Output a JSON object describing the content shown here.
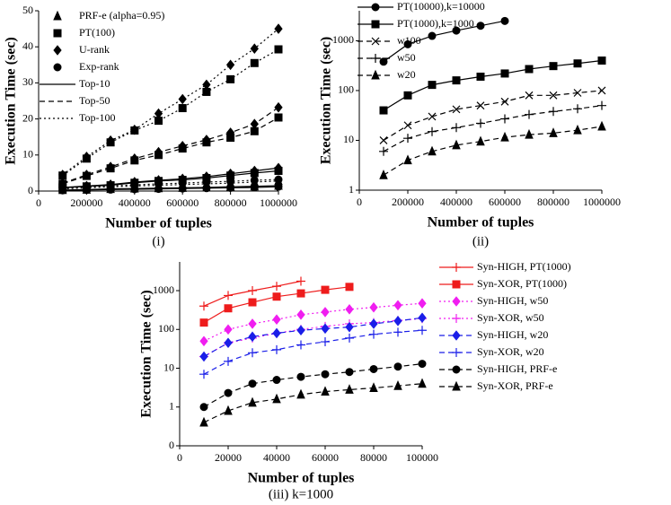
{
  "chart_data": [
    {
      "type": "line",
      "caption": "(i)",
      "xlabel": "Number of tuples",
      "ylabel": "Execution Time (sec)",
      "x": [
        100000,
        200000,
        300000,
        400000,
        500000,
        600000,
        700000,
        800000,
        900000,
        1000000
      ],
      "xlim": [
        0,
        1000000
      ],
      "xticks": [
        0,
        200000,
        400000,
        600000,
        800000,
        1000000
      ],
      "ylim": [
        0,
        50
      ],
      "yticks": [
        0,
        10,
        20,
        30,
        40,
        50
      ],
      "ylog": false,
      "legend": [
        {
          "name": "PRF-e (alpha=0.95)",
          "marker": "triangle"
        },
        {
          "name": "PT(100)",
          "marker": "square"
        },
        {
          "name": "U-rank",
          "marker": "diamond"
        },
        {
          "name": "Exp-rank",
          "marker": "circle"
        },
        {
          "name": "Top-10",
          "dash": "solid"
        },
        {
          "name": "Top-50",
          "dash": "dashed"
        },
        {
          "name": "Top-100",
          "dash": "dotted"
        }
      ],
      "series": [
        {
          "marker": "diamond",
          "dash": "dotted",
          "color": "#000000",
          "values": [
            4.5,
            9.5,
            14,
            17,
            21.5,
            25.5,
            29.5,
            35,
            39.5,
            45
          ]
        },
        {
          "marker": "square",
          "dash": "dotted",
          "color": "#000000",
          "values": [
            4.3,
            9,
            13.5,
            16.8,
            19.5,
            23,
            27.5,
            31,
            35.5,
            39.3
          ]
        },
        {
          "marker": "diamond",
          "dash": "dashed",
          "color": "#000000",
          "values": [
            2.2,
            4.5,
            6.7,
            9,
            10.8,
            12.5,
            14.2,
            16.2,
            18.6,
            23.2
          ]
        },
        {
          "marker": "square",
          "dash": "dashed",
          "color": "#000000",
          "values": [
            2,
            4.2,
            6.3,
            8.5,
            10,
            11.8,
            13.5,
            14.8,
            16.6,
            20.4
          ]
        },
        {
          "marker": "diamond",
          "dash": "solid",
          "color": "#000000",
          "values": [
            1,
            1.4,
            1.8,
            2.5,
            3,
            3.4,
            4,
            4.8,
            5.6,
            6.4
          ]
        },
        {
          "marker": "square",
          "dash": "solid",
          "color": "#000000",
          "values": [
            0.9,
            1.3,
            1.6,
            2.3,
            2.8,
            3.1,
            3.6,
            4.3,
            5,
            5.6
          ]
        },
        {
          "marker": "circle",
          "dash": "dotted",
          "color": "#000000",
          "values": [
            0.8,
            1.1,
            1.4,
            1.7,
            2,
            2.2,
            2.5,
            2.7,
            3,
            3.2
          ]
        },
        {
          "marker": "triangle",
          "dash": "dotted",
          "color": "#000000",
          "values": [
            0.6,
            0.9,
            1.2,
            1.4,
            1.6,
            1.8,
            2,
            2.2,
            2.5,
            2.8
          ]
        },
        {
          "marker": "triangle",
          "dash": "solid",
          "color": "#000000",
          "values": [
            0.3,
            0.4,
            0.6,
            0.7,
            0.8,
            0.9,
            1,
            1.2,
            1.3,
            1.5
          ]
        },
        {
          "marker": "circle",
          "dash": "solid",
          "color": "#000000",
          "values": [
            0.2,
            0.3,
            0.4,
            0.5,
            0.6,
            0.7,
            0.8,
            0.9,
            1,
            1.2
          ]
        }
      ]
    },
    {
      "type": "line",
      "caption": "(ii)",
      "xlabel": "Number of tuples",
      "ylabel": "Execution Time (sec)",
      "x": [
        100000,
        200000,
        300000,
        400000,
        500000,
        600000,
        700000,
        800000,
        900000,
        1000000
      ],
      "xlim": [
        0,
        1000000
      ],
      "xticks": [
        0,
        200000,
        400000,
        600000,
        800000,
        1000000
      ],
      "ylim": [
        1,
        4000
      ],
      "yticks": [
        1,
        10,
        100,
        1000
      ],
      "ylog": true,
      "series": [
        {
          "name": "PT(10000),k=10000",
          "marker": "circle",
          "dash": "solid",
          "color": "#000000",
          "values": [
            380,
            850,
            1250,
            1600,
            2000,
            2500,
            null,
            null,
            null,
            null
          ]
        },
        {
          "name": "PT(1000),k=1000",
          "marker": "square",
          "dash": "solid",
          "color": "#000000",
          "values": [
            40,
            80,
            130,
            160,
            190,
            220,
            270,
            310,
            350,
            400
          ]
        },
        {
          "name": "w100",
          "marker": "x",
          "dash": "dashed",
          "color": "#000000",
          "values": [
            10,
            20,
            30,
            42,
            50,
            60,
            80,
            80,
            90,
            100
          ]
        },
        {
          "name": "w50",
          "marker": "plus",
          "dash": "dashed",
          "color": "#000000",
          "values": [
            6,
            11,
            15,
            18,
            22,
            27,
            33,
            38,
            43,
            50
          ]
        },
        {
          "name": "w20",
          "marker": "triangle",
          "dash": "dashed",
          "color": "#000000",
          "values": [
            2,
            4,
            6,
            8,
            9.5,
            11.5,
            13,
            14,
            16,
            19
          ]
        }
      ]
    },
    {
      "type": "line",
      "caption": "(iii) k=1000",
      "xlabel": "Number of tuples",
      "ylabel": "Execution Time (sec)",
      "x": [
        10000,
        20000,
        30000,
        40000,
        50000,
        60000,
        70000,
        80000,
        90000,
        100000
      ],
      "xlim": [
        0,
        100000
      ],
      "xticks": [
        0,
        20000,
        40000,
        60000,
        80000,
        100000
      ],
      "ylim": [
        0.1,
        5500
      ],
      "yticks": [
        {
          "value": 0.1,
          "label": "0"
        },
        1,
        10,
        100,
        1000
      ],
      "ylog": true,
      "series": [
        {
          "name": "Syn-HIGH, PT(1000)",
          "marker": "plus",
          "dash": "solid",
          "color": "#ee1c1c",
          "values": [
            400,
            750,
            1000,
            1300,
            1750,
            null,
            null,
            null,
            null,
            null
          ]
        },
        {
          "name": "Syn-XOR, PT(1000)",
          "marker": "square",
          "dash": "solid",
          "color": "#ee1c1c",
          "values": [
            150,
            350,
            500,
            700,
            850,
            1050,
            1250,
            null,
            null,
            null
          ]
        },
        {
          "name": "Syn-HIGH, w50",
          "marker": "diamond",
          "dash": "dotted",
          "color": "#f01ef0",
          "values": [
            50,
            100,
            140,
            180,
            240,
            280,
            330,
            370,
            420,
            470
          ]
        },
        {
          "name": "Syn-XOR, w50",
          "marker": "plus",
          "dash": "dotted",
          "color": "#f01ef0",
          "values": [
            20,
            45,
            60,
            80,
            100,
            120,
            140,
            150,
            170,
            190
          ]
        },
        {
          "name": "Syn-HIGH, w20",
          "marker": "diamond",
          "dash": "dashed",
          "color": "#1a1ee8",
          "values": [
            20,
            45,
            65,
            80,
            95,
            105,
            115,
            140,
            165,
            200
          ]
        },
        {
          "name": "Syn-XOR, w20",
          "marker": "plus",
          "dash": "dashed",
          "color": "#1a1ee8",
          "values": [
            7,
            15,
            25,
            30,
            40,
            48,
            60,
            75,
            85,
            95
          ]
        },
        {
          "name": "Syn-HIGH, PRF-e",
          "marker": "circle",
          "dash": "dashed",
          "color": "#000000",
          "values": [
            1,
            2.3,
            4,
            5,
            6,
            7,
            8,
            9.5,
            11,
            13
          ]
        },
        {
          "name": "Syn-XOR, PRF-e",
          "marker": "triangle",
          "dash": "dashed",
          "color": "#000000",
          "values": [
            0.4,
            0.8,
            1.3,
            1.6,
            2.1,
            2.5,
            2.8,
            3.1,
            3.5,
            4
          ]
        }
      ]
    }
  ]
}
